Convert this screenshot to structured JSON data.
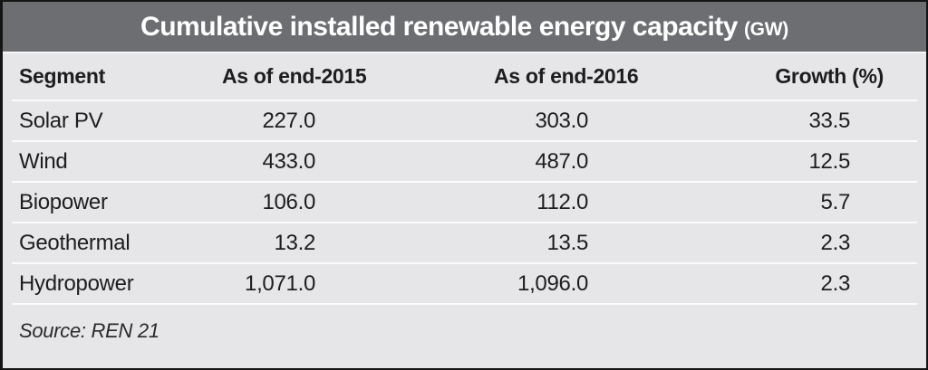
{
  "chart_data": {
    "type": "table",
    "title": "Cumulative installed renewable energy capacity",
    "title_unit": "(GW)",
    "columns": [
      "Segment",
      "As of end-2015",
      "As of end-2016",
      "Growth (%)"
    ],
    "rows": [
      [
        "Solar PV",
        "227.0",
        "303.0",
        "33.5"
      ],
      [
        "Wind",
        "433.0",
        "487.0",
        "12.5"
      ],
      [
        "Biopower",
        "106.0",
        "112.0",
        "5.7"
      ],
      [
        "Geothermal",
        "13.2",
        "13.5",
        "2.3"
      ],
      [
        "Hydropower",
        "1,071.0",
        "1,096.0",
        "2.3"
      ]
    ],
    "source": "Source: REN 21",
    "layout": {
      "header_alignment": [
        "left",
        "center",
        "center",
        "right"
      ],
      "value_alignment": [
        "left",
        "right",
        "right",
        "right"
      ],
      "grid": "horizontal-white-separators"
    }
  },
  "colors": {
    "title_bar_bg": "#6c6e71",
    "title_text": "#ffffff",
    "body_bg": "#e6e6e8",
    "row_separator": "#fbfbfb",
    "text": "#1d1d1f",
    "outer_border": "#141414"
  }
}
